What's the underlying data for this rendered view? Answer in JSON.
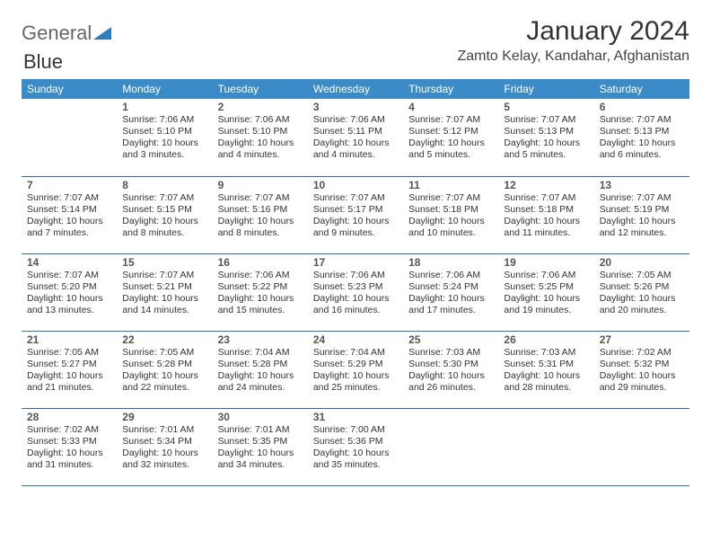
{
  "brand": {
    "part1": "General",
    "part2": "Blue"
  },
  "header": {
    "month_title": "January 2024",
    "location": "Zamto Kelay, Kandahar, Afghanistan"
  },
  "colors": {
    "header_bg": "#3b8bc9",
    "header_text": "#ffffff",
    "row_border": "#2f6fa8",
    "brand_blue": "#2e7cc0",
    "text": "#333333"
  },
  "weekdays": [
    "Sunday",
    "Monday",
    "Tuesday",
    "Wednesday",
    "Thursday",
    "Friday",
    "Saturday"
  ],
  "weeks": [
    [
      null,
      {
        "n": "1",
        "sr": "Sunrise: 7:06 AM",
        "ss": "Sunset: 5:10 PM",
        "d1": "Daylight: 10 hours",
        "d2": "and 3 minutes."
      },
      {
        "n": "2",
        "sr": "Sunrise: 7:06 AM",
        "ss": "Sunset: 5:10 PM",
        "d1": "Daylight: 10 hours",
        "d2": "and 4 minutes."
      },
      {
        "n": "3",
        "sr": "Sunrise: 7:06 AM",
        "ss": "Sunset: 5:11 PM",
        "d1": "Daylight: 10 hours",
        "d2": "and 4 minutes."
      },
      {
        "n": "4",
        "sr": "Sunrise: 7:07 AM",
        "ss": "Sunset: 5:12 PM",
        "d1": "Daylight: 10 hours",
        "d2": "and 5 minutes."
      },
      {
        "n": "5",
        "sr": "Sunrise: 7:07 AM",
        "ss": "Sunset: 5:13 PM",
        "d1": "Daylight: 10 hours",
        "d2": "and 5 minutes."
      },
      {
        "n": "6",
        "sr": "Sunrise: 7:07 AM",
        "ss": "Sunset: 5:13 PM",
        "d1": "Daylight: 10 hours",
        "d2": "and 6 minutes."
      }
    ],
    [
      {
        "n": "7",
        "sr": "Sunrise: 7:07 AM",
        "ss": "Sunset: 5:14 PM",
        "d1": "Daylight: 10 hours",
        "d2": "and 7 minutes."
      },
      {
        "n": "8",
        "sr": "Sunrise: 7:07 AM",
        "ss": "Sunset: 5:15 PM",
        "d1": "Daylight: 10 hours",
        "d2": "and 8 minutes."
      },
      {
        "n": "9",
        "sr": "Sunrise: 7:07 AM",
        "ss": "Sunset: 5:16 PM",
        "d1": "Daylight: 10 hours",
        "d2": "and 8 minutes."
      },
      {
        "n": "10",
        "sr": "Sunrise: 7:07 AM",
        "ss": "Sunset: 5:17 PM",
        "d1": "Daylight: 10 hours",
        "d2": "and 9 minutes."
      },
      {
        "n": "11",
        "sr": "Sunrise: 7:07 AM",
        "ss": "Sunset: 5:18 PM",
        "d1": "Daylight: 10 hours",
        "d2": "and 10 minutes."
      },
      {
        "n": "12",
        "sr": "Sunrise: 7:07 AM",
        "ss": "Sunset: 5:18 PM",
        "d1": "Daylight: 10 hours",
        "d2": "and 11 minutes."
      },
      {
        "n": "13",
        "sr": "Sunrise: 7:07 AM",
        "ss": "Sunset: 5:19 PM",
        "d1": "Daylight: 10 hours",
        "d2": "and 12 minutes."
      }
    ],
    [
      {
        "n": "14",
        "sr": "Sunrise: 7:07 AM",
        "ss": "Sunset: 5:20 PM",
        "d1": "Daylight: 10 hours",
        "d2": "and 13 minutes."
      },
      {
        "n": "15",
        "sr": "Sunrise: 7:07 AM",
        "ss": "Sunset: 5:21 PM",
        "d1": "Daylight: 10 hours",
        "d2": "and 14 minutes."
      },
      {
        "n": "16",
        "sr": "Sunrise: 7:06 AM",
        "ss": "Sunset: 5:22 PM",
        "d1": "Daylight: 10 hours",
        "d2": "and 15 minutes."
      },
      {
        "n": "17",
        "sr": "Sunrise: 7:06 AM",
        "ss": "Sunset: 5:23 PM",
        "d1": "Daylight: 10 hours",
        "d2": "and 16 minutes."
      },
      {
        "n": "18",
        "sr": "Sunrise: 7:06 AM",
        "ss": "Sunset: 5:24 PM",
        "d1": "Daylight: 10 hours",
        "d2": "and 17 minutes."
      },
      {
        "n": "19",
        "sr": "Sunrise: 7:06 AM",
        "ss": "Sunset: 5:25 PM",
        "d1": "Daylight: 10 hours",
        "d2": "and 19 minutes."
      },
      {
        "n": "20",
        "sr": "Sunrise: 7:05 AM",
        "ss": "Sunset: 5:26 PM",
        "d1": "Daylight: 10 hours",
        "d2": "and 20 minutes."
      }
    ],
    [
      {
        "n": "21",
        "sr": "Sunrise: 7:05 AM",
        "ss": "Sunset: 5:27 PM",
        "d1": "Daylight: 10 hours",
        "d2": "and 21 minutes."
      },
      {
        "n": "22",
        "sr": "Sunrise: 7:05 AM",
        "ss": "Sunset: 5:28 PM",
        "d1": "Daylight: 10 hours",
        "d2": "and 22 minutes."
      },
      {
        "n": "23",
        "sr": "Sunrise: 7:04 AM",
        "ss": "Sunset: 5:28 PM",
        "d1": "Daylight: 10 hours",
        "d2": "and 24 minutes."
      },
      {
        "n": "24",
        "sr": "Sunrise: 7:04 AM",
        "ss": "Sunset: 5:29 PM",
        "d1": "Daylight: 10 hours",
        "d2": "and 25 minutes."
      },
      {
        "n": "25",
        "sr": "Sunrise: 7:03 AM",
        "ss": "Sunset: 5:30 PM",
        "d1": "Daylight: 10 hours",
        "d2": "and 26 minutes."
      },
      {
        "n": "26",
        "sr": "Sunrise: 7:03 AM",
        "ss": "Sunset: 5:31 PM",
        "d1": "Daylight: 10 hours",
        "d2": "and 28 minutes."
      },
      {
        "n": "27",
        "sr": "Sunrise: 7:02 AM",
        "ss": "Sunset: 5:32 PM",
        "d1": "Daylight: 10 hours",
        "d2": "and 29 minutes."
      }
    ],
    [
      {
        "n": "28",
        "sr": "Sunrise: 7:02 AM",
        "ss": "Sunset: 5:33 PM",
        "d1": "Daylight: 10 hours",
        "d2": "and 31 minutes."
      },
      {
        "n": "29",
        "sr": "Sunrise: 7:01 AM",
        "ss": "Sunset: 5:34 PM",
        "d1": "Daylight: 10 hours",
        "d2": "and 32 minutes."
      },
      {
        "n": "30",
        "sr": "Sunrise: 7:01 AM",
        "ss": "Sunset: 5:35 PM",
        "d1": "Daylight: 10 hours",
        "d2": "and 34 minutes."
      },
      {
        "n": "31",
        "sr": "Sunrise: 7:00 AM",
        "ss": "Sunset: 5:36 PM",
        "d1": "Daylight: 10 hours",
        "d2": "and 35 minutes."
      },
      null,
      null,
      null
    ]
  ]
}
